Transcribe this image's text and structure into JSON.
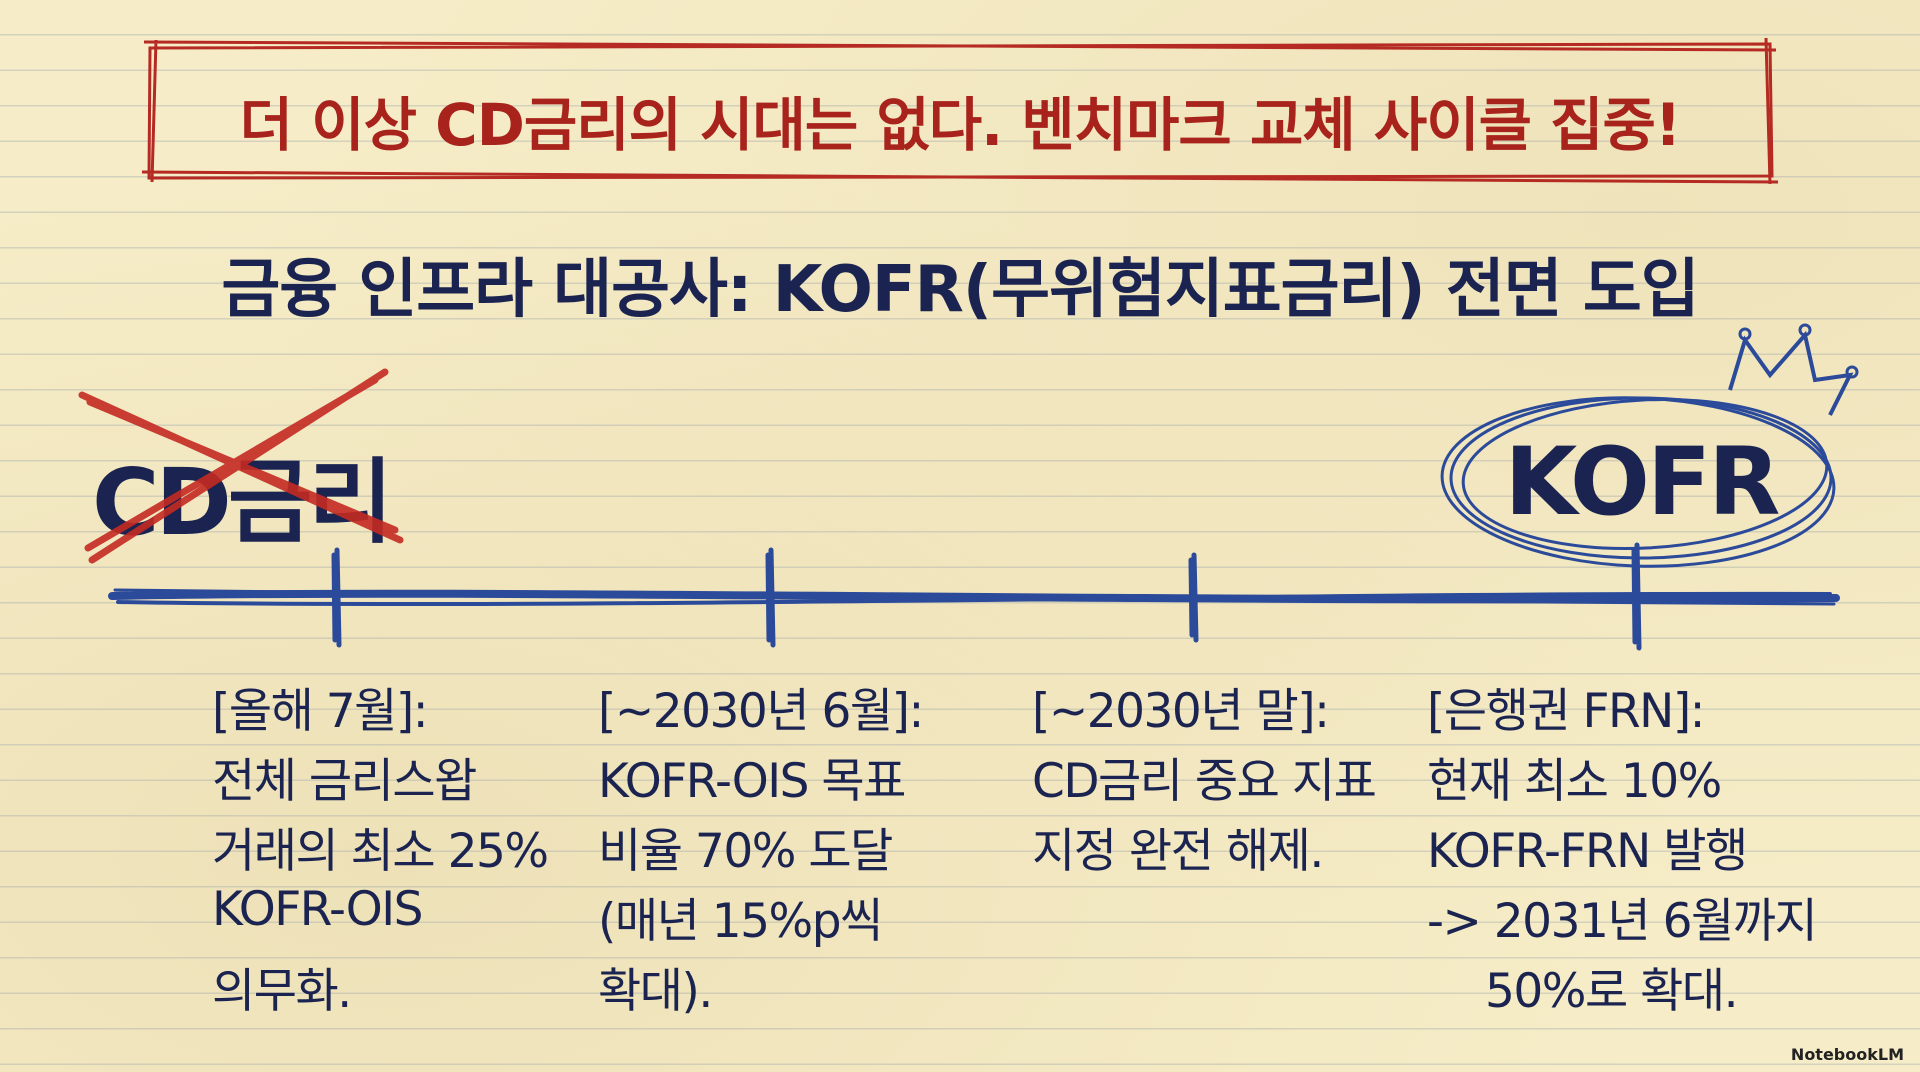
{
  "banner": "더 이상 CD금리의 시대는 없다. 벤치마크 교체 사이클 집중!",
  "title": "금융 인프라 대공사: KOFR(무위험지표금리) 전면 도입",
  "old_label": "CD금리",
  "new_label": "KOFR",
  "milestones": [
    {
      "lines": [
        "[올해 7월]:",
        "전체 금리스왑",
        "거래의 최소 25%",
        "KOFR-OIS",
        "의무화."
      ]
    },
    {
      "lines": [
        "[~2030년 6월]:",
        "KOFR-OIS 목표",
        "비율 70% 도달",
        "(매년 15%p씩",
        "확대)."
      ]
    },
    {
      "lines": [
        "[~2030년 말]:",
        "CD금리 중요 지표",
        "지정 완전 해제."
      ]
    },
    {
      "lines": [
        "[은행권 FRN]:",
        "현재 최소 10%",
        "KOFR-FRN 발행",
        "-> 2031년 6월까지",
        "50%로 확대."
      ]
    }
  ],
  "watermark": "NotebookLM"
}
